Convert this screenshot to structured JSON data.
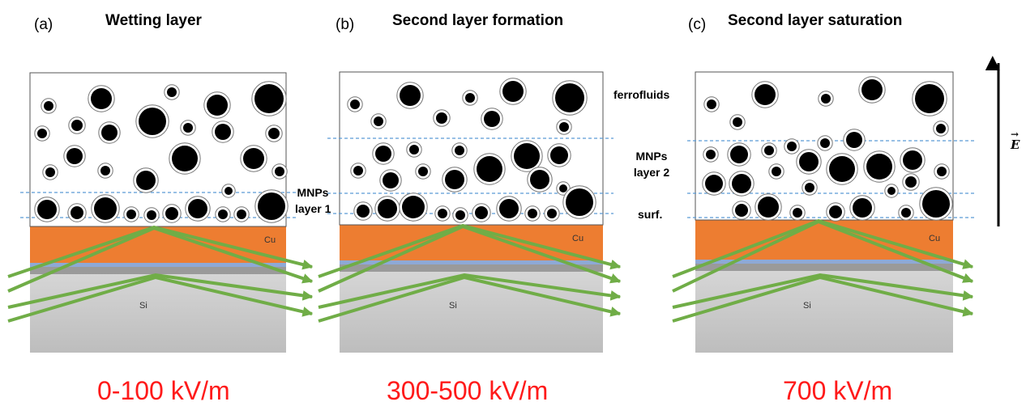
{
  "panels": [
    {
      "label": "(a)",
      "title": "Wetting layer",
      "field": "0-100 kV/m",
      "cu": "Cu",
      "si": "Si"
    },
    {
      "label": "(b)",
      "title": "Second layer formation",
      "field": "300-500 kV/m",
      "cu": "Cu",
      "si": "Si"
    },
    {
      "label": "(c)",
      "title": "Second layer saturation",
      "field": "700 kV/m",
      "cu": "Cu",
      "si": "Si"
    }
  ],
  "annotations": {
    "ferrofluids": "ferrofluids",
    "mnps_layer2": [
      "MNPs",
      "layer 2"
    ],
    "mnps_layer1": [
      "MNPs",
      "layer 1"
    ],
    "surf": "surf."
  },
  "field_symbol": "E",
  "colors": {
    "copper": "#ed7d31",
    "silicon": "#c8c8c8",
    "beam": "#70ad47",
    "dashed": "#5b9bd5",
    "field_text": "#ff1a1a"
  }
}
